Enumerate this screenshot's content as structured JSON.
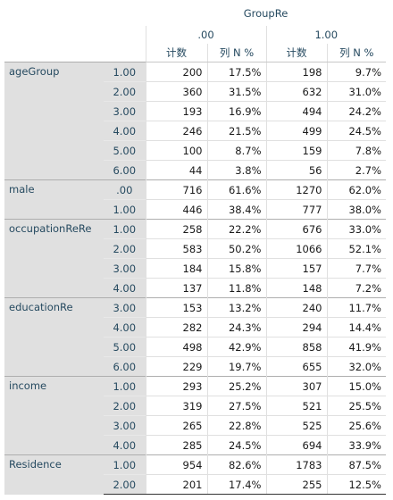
{
  "table": {
    "title": "GroupRe",
    "groups": [
      ".00",
      "1.00"
    ],
    "columns": [
      "计数",
      "列 N %",
      "计数",
      "列 N %"
    ],
    "sections": [
      {
        "name": "ageGroup",
        "rows": [
          [
            "1.00",
            "200",
            "17.5%",
            "198",
            "9.7%"
          ],
          [
            "2.00",
            "360",
            "31.5%",
            "632",
            "31.0%"
          ],
          [
            "3.00",
            "193",
            "16.9%",
            "494",
            "24.2%"
          ],
          [
            "4.00",
            "246",
            "21.5%",
            "499",
            "24.5%"
          ],
          [
            "5.00",
            "100",
            "8.7%",
            "159",
            "7.8%"
          ],
          [
            "6.00",
            "44",
            "3.8%",
            "56",
            "2.7%"
          ]
        ]
      },
      {
        "name": "male",
        "rows": [
          [
            ".00",
            "716",
            "61.6%",
            "1270",
            "62.0%"
          ],
          [
            "1.00",
            "446",
            "38.4%",
            "777",
            "38.0%"
          ]
        ]
      },
      {
        "name": "occupationReRe",
        "rows": [
          [
            "1.00",
            "258",
            "22.2%",
            "676",
            "33.0%"
          ],
          [
            "2.00",
            "583",
            "50.2%",
            "1066",
            "52.1%"
          ],
          [
            "3.00",
            "184",
            "15.8%",
            "157",
            "7.7%"
          ],
          [
            "4.00",
            "137",
            "11.8%",
            "148",
            "7.2%"
          ]
        ]
      },
      {
        "name": "educationRe",
        "rows": [
          [
            "3.00",
            "153",
            "13.2%",
            "240",
            "11.7%"
          ],
          [
            "4.00",
            "282",
            "24.3%",
            "294",
            "14.4%"
          ],
          [
            "5.00",
            "498",
            "42.9%",
            "858",
            "41.9%"
          ],
          [
            "6.00",
            "229",
            "19.7%",
            "655",
            "32.0%"
          ]
        ]
      },
      {
        "name": "income",
        "rows": [
          [
            "1.00",
            "293",
            "25.2%",
            "307",
            "15.0%"
          ],
          [
            "2.00",
            "319",
            "27.5%",
            "521",
            "25.5%"
          ],
          [
            "3.00",
            "265",
            "22.8%",
            "525",
            "25.6%"
          ],
          [
            "4.00",
            "285",
            "24.5%",
            "694",
            "33.9%"
          ]
        ]
      },
      {
        "name": "Residence",
        "rows": [
          [
            "1.00",
            "954",
            "82.6%",
            "1783",
            "87.5%"
          ],
          [
            "2.00",
            "201",
            "17.4%",
            "255",
            "12.5%"
          ]
        ]
      }
    ]
  }
}
